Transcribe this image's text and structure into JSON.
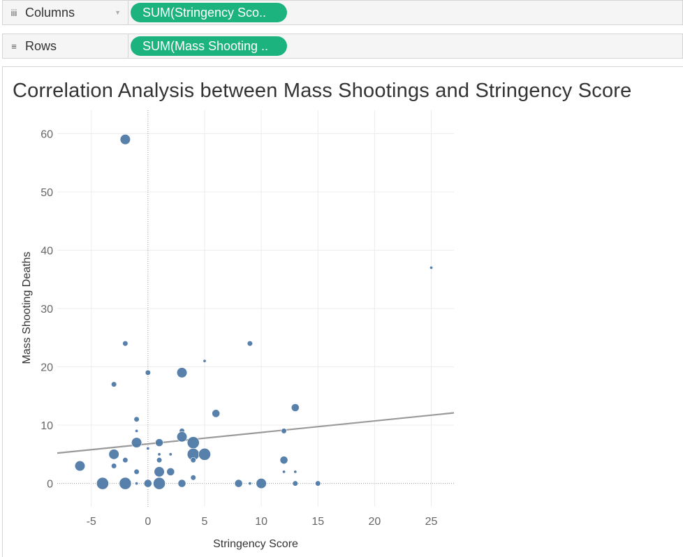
{
  "shelves": {
    "columns": {
      "icon": "columns-icon",
      "icon_glyph": "iii",
      "label": "Columns",
      "pill": "SUM(Stringency Sco.."
    },
    "rows": {
      "icon": "rows-icon",
      "icon_glyph": "≡",
      "label": "Rows",
      "pill": "SUM(Mass Shooting .."
    }
  },
  "colors": {
    "pill": "#1db37f",
    "point": "#4e79a7",
    "trend": "#999999"
  },
  "chart_data": {
    "type": "scatter",
    "title": "Correlation Analysis between Mass Shootings and Stringency Score",
    "xlabel": "Stringency Score",
    "ylabel": "Mass Shooting Deaths",
    "xlim": [
      -8,
      27
    ],
    "ylim": [
      -4,
      64
    ],
    "xticks": [
      -5,
      0,
      5,
      10,
      15,
      20,
      25
    ],
    "yticks": [
      0,
      10,
      20,
      30,
      40,
      50,
      60
    ],
    "grid": true,
    "trend_line": {
      "x": [
        -8,
        27
      ],
      "y": [
        5.2,
        12.1
      ]
    },
    "points": [
      {
        "x": -2,
        "y": 59,
        "size": "large"
      },
      {
        "x": 25,
        "y": 37,
        "size": "tiny"
      },
      {
        "x": -2,
        "y": 24,
        "size": "small"
      },
      {
        "x": 9,
        "y": 24,
        "size": "small"
      },
      {
        "x": 5,
        "y": 21,
        "size": "tiny"
      },
      {
        "x": 0,
        "y": 19,
        "size": "small"
      },
      {
        "x": 3,
        "y": 19,
        "size": "large"
      },
      {
        "x": -3,
        "y": 17,
        "size": "small"
      },
      {
        "x": 13,
        "y": 13,
        "size": "medium"
      },
      {
        "x": 6,
        "y": 12,
        "size": "medium"
      },
      {
        "x": -1,
        "y": 11,
        "size": "small"
      },
      {
        "x": -1,
        "y": 9,
        "size": "tiny"
      },
      {
        "x": 3,
        "y": 9,
        "size": "small"
      },
      {
        "x": 12,
        "y": 9,
        "size": "small"
      },
      {
        "x": 3,
        "y": 8,
        "size": "large"
      },
      {
        "x": -1,
        "y": 7,
        "size": "large"
      },
      {
        "x": 1,
        "y": 7,
        "size": "medium"
      },
      {
        "x": 4,
        "y": 7,
        "size": "xlarge"
      },
      {
        "x": 0,
        "y": 6,
        "size": "tiny"
      },
      {
        "x": -3,
        "y": 5,
        "size": "large"
      },
      {
        "x": 1,
        "y": 5,
        "size": "tiny"
      },
      {
        "x": 2,
        "y": 5,
        "size": "tiny"
      },
      {
        "x": 4,
        "y": 5,
        "size": "xlarge"
      },
      {
        "x": 5,
        "y": 5,
        "size": "xlarge"
      },
      {
        "x": -2,
        "y": 4,
        "size": "small"
      },
      {
        "x": 1,
        "y": 4,
        "size": "small"
      },
      {
        "x": 4,
        "y": 4,
        "size": "small"
      },
      {
        "x": 12,
        "y": 4,
        "size": "medium"
      },
      {
        "x": -6,
        "y": 3,
        "size": "large"
      },
      {
        "x": -3,
        "y": 3,
        "size": "small"
      },
      {
        "x": -1,
        "y": 2,
        "size": "small"
      },
      {
        "x": 1,
        "y": 2,
        "size": "large"
      },
      {
        "x": 2,
        "y": 2,
        "size": "medium"
      },
      {
        "x": 12,
        "y": 2,
        "size": "tiny"
      },
      {
        "x": 13,
        "y": 2,
        "size": "tiny"
      },
      {
        "x": 4,
        "y": 1,
        "size": "small"
      },
      {
        "x": -4,
        "y": 0,
        "size": "xlarge"
      },
      {
        "x": -2,
        "y": 0,
        "size": "xlarge"
      },
      {
        "x": -1,
        "y": 0,
        "size": "tiny"
      },
      {
        "x": 0,
        "y": 0,
        "size": "medium"
      },
      {
        "x": 1,
        "y": 0,
        "size": "xlarge"
      },
      {
        "x": 3,
        "y": 0,
        "size": "medium"
      },
      {
        "x": 8,
        "y": 0,
        "size": "medium"
      },
      {
        "x": 9,
        "y": 0,
        "size": "tiny"
      },
      {
        "x": 10,
        "y": 0,
        "size": "large"
      },
      {
        "x": 13,
        "y": 0,
        "size": "small"
      },
      {
        "x": 15,
        "y": 0,
        "size": "small"
      }
    ]
  }
}
